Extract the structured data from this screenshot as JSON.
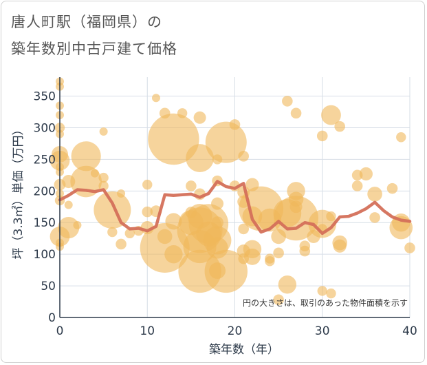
{
  "title": {
    "line1": "唐人町駅（福岡県）の",
    "line2": "築年数別中古戸建て価格"
  },
  "chart_data": {
    "type": "scatter",
    "xlabel": "築年数（年）",
    "ylabel": "坪（3.3㎡）単価（万円）",
    "note": "円の大きさは、取引のあった物件面積を示す",
    "xlim": [
      0,
      40
    ],
    "ylim": [
      0,
      380
    ],
    "xticks": [
      0,
      10,
      20,
      30,
      40
    ],
    "yticks": [
      0,
      50,
      100,
      150,
      200,
      250,
      300,
      350
    ],
    "grid": true,
    "colors": {
      "bubble": "#f0b75a",
      "line": "#d4705a",
      "grid": "#d6dde6",
      "axis": "#2d3a4a"
    },
    "series": [
      {
        "kind": "bubbles",
        "points": [
          {
            "x": 0,
            "y": 373,
            "s": 1
          },
          {
            "x": 0,
            "y": 365,
            "s": 1
          },
          {
            "x": 0,
            "y": 335,
            "s": 1
          },
          {
            "x": 0,
            "y": 320,
            "s": 1
          },
          {
            "x": 0,
            "y": 300,
            "s": 1.2
          },
          {
            "x": 0,
            "y": 290,
            "s": 1
          },
          {
            "x": 0,
            "y": 258,
            "s": 2
          },
          {
            "x": 0,
            "y": 248,
            "s": 2.4
          },
          {
            "x": 0,
            "y": 238,
            "s": 1
          },
          {
            "x": 0,
            "y": 230,
            "s": 1
          },
          {
            "x": 0,
            "y": 210,
            "s": 1.4
          },
          {
            "x": 0,
            "y": 196,
            "s": 1
          },
          {
            "x": 0,
            "y": 185,
            "s": 1.2
          },
          {
            "x": 0,
            "y": 128,
            "s": 2.4
          },
          {
            "x": 0,
            "y": 118,
            "s": 1
          },
          {
            "x": 0,
            "y": 112,
            "s": 1
          },
          {
            "x": 1,
            "y": 215,
            "s": 1.6
          },
          {
            "x": 1,
            "y": 178,
            "s": 1
          },
          {
            "x": 1,
            "y": 142,
            "s": 2.6
          },
          {
            "x": 2,
            "y": 146,
            "s": 1
          },
          {
            "x": 3,
            "y": 255,
            "s": 3.6
          },
          {
            "x": 3,
            "y": 215,
            "s": 3.8
          },
          {
            "x": 4,
            "y": 228,
            "s": 1
          },
          {
            "x": 5,
            "y": 294,
            "s": 1
          },
          {
            "x": 5,
            "y": 221,
            "s": 1.2
          },
          {
            "x": 5,
            "y": 208,
            "s": 1.2
          },
          {
            "x": 6,
            "y": 170,
            "s": 4.5
          },
          {
            "x": 6,
            "y": 135,
            "s": 1.2
          },
          {
            "x": 7,
            "y": 196,
            "s": 1
          },
          {
            "x": 7,
            "y": 116,
            "s": 1.3
          },
          {
            "x": 8,
            "y": 133,
            "s": 1.2
          },
          {
            "x": 9,
            "y": 137,
            "s": 1.2
          },
          {
            "x": 10,
            "y": 210,
            "s": 1.2
          },
          {
            "x": 10,
            "y": 167,
            "s": 1.3
          },
          {
            "x": 10,
            "y": 142,
            "s": 1.6
          },
          {
            "x": 11,
            "y": 347,
            "s": 1
          },
          {
            "x": 11,
            "y": 168,
            "s": 1.4
          },
          {
            "x": 12,
            "y": 323,
            "s": 1.3
          },
          {
            "x": 12,
            "y": 128,
            "s": 1.8
          },
          {
            "x": 12,
            "y": 110,
            "s": 6
          },
          {
            "x": 13,
            "y": 282,
            "s": 6.2
          },
          {
            "x": 13,
            "y": 100,
            "s": 2.2
          },
          {
            "x": 13,
            "y": 152,
            "s": 2
          },
          {
            "x": 14,
            "y": 323,
            "s": 1.2
          },
          {
            "x": 15,
            "y": 208,
            "s": 1.3
          },
          {
            "x": 15,
            "y": 166,
            "s": 1.4
          },
          {
            "x": 15,
            "y": 150,
            "s": 3
          },
          {
            "x": 16,
            "y": 316,
            "s": 1.5
          },
          {
            "x": 16,
            "y": 252,
            "s": 3.4
          },
          {
            "x": 16,
            "y": 195,
            "s": 1.4
          },
          {
            "x": 16,
            "y": 160,
            "s": 3
          },
          {
            "x": 16,
            "y": 138,
            "s": 5.5
          },
          {
            "x": 16,
            "y": 112,
            "s": 4
          },
          {
            "x": 16,
            "y": 73,
            "s": 5.2
          },
          {
            "x": 17,
            "y": 148,
            "s": 4.8
          },
          {
            "x": 17,
            "y": 132,
            "s": 3
          },
          {
            "x": 18,
            "y": 250,
            "s": 1.2
          },
          {
            "x": 18,
            "y": 216,
            "s": 1.3
          },
          {
            "x": 18,
            "y": 180,
            "s": 1.5
          },
          {
            "x": 18,
            "y": 150,
            "s": 1.5
          },
          {
            "x": 18,
            "y": 122,
            "s": 3.4
          },
          {
            "x": 18,
            "y": 110,
            "s": 2.6
          },
          {
            "x": 18,
            "y": 74,
            "s": 2
          },
          {
            "x": 19,
            "y": 277,
            "s": 5
          },
          {
            "x": 19,
            "y": 73,
            "s": 5.2
          },
          {
            "x": 20,
            "y": 305,
            "s": 1.3
          },
          {
            "x": 20,
            "y": 208,
            "s": 1.3
          },
          {
            "x": 21,
            "y": 255,
            "s": 1.3
          },
          {
            "x": 21,
            "y": 198,
            "s": 1.5
          },
          {
            "x": 21,
            "y": 183,
            "s": 1.5
          },
          {
            "x": 21,
            "y": 140,
            "s": 1.3
          },
          {
            "x": 21,
            "y": 105,
            "s": 1.6
          },
          {
            "x": 21,
            "y": 93,
            "s": 1.3
          },
          {
            "x": 22,
            "y": 210,
            "s": 1.6
          },
          {
            "x": 22,
            "y": 160,
            "s": 2.4
          },
          {
            "x": 22,
            "y": 108,
            "s": 2.2
          },
          {
            "x": 22,
            "y": 96,
            "s": 2
          },
          {
            "x": 23,
            "y": 172,
            "s": 5.4
          },
          {
            "x": 24,
            "y": 154,
            "s": 2.8
          },
          {
            "x": 24,
            "y": 93,
            "s": 1.2
          },
          {
            "x": 24,
            "y": 89,
            "s": 1.2
          },
          {
            "x": 25,
            "y": 128,
            "s": 1.8
          },
          {
            "x": 25,
            "y": 102,
            "s": 1.3
          },
          {
            "x": 25,
            "y": 28,
            "s": 1.3
          },
          {
            "x": 26,
            "y": 342,
            "s": 1.3
          },
          {
            "x": 26,
            "y": 165,
            "s": 3.4
          },
          {
            "x": 26,
            "y": 52,
            "s": 2.2
          },
          {
            "x": 27,
            "y": 323,
            "s": 1.3
          },
          {
            "x": 27,
            "y": 200,
            "s": 2.2
          },
          {
            "x": 27,
            "y": 187,
            "s": 1.8
          },
          {
            "x": 27,
            "y": 175,
            "s": 1.5
          },
          {
            "x": 27,
            "y": 157,
            "s": 5.4
          },
          {
            "x": 28,
            "y": 113,
            "s": 1.3
          },
          {
            "x": 28,
            "y": 105,
            "s": 1.3
          },
          {
            "x": 29,
            "y": 128,
            "s": 1.6
          },
          {
            "x": 30,
            "y": 287,
            "s": 1.3
          },
          {
            "x": 30,
            "y": 148,
            "s": 3.4
          },
          {
            "x": 30,
            "y": 42,
            "s": 1.2
          },
          {
            "x": 31,
            "y": 320,
            "s": 2.4
          },
          {
            "x": 31,
            "y": 38,
            "s": 1.2
          },
          {
            "x": 32,
            "y": 302,
            "s": 1.3
          },
          {
            "x": 32,
            "y": 118,
            "s": 1.8
          },
          {
            "x": 32,
            "y": 113,
            "s": 1.6
          },
          {
            "x": 34,
            "y": 225,
            "s": 1.3
          },
          {
            "x": 34,
            "y": 208,
            "s": 1.3
          },
          {
            "x": 35,
            "y": 227,
            "s": 1.6
          },
          {
            "x": 36,
            "y": 195,
            "s": 1.8
          },
          {
            "x": 36,
            "y": 158,
            "s": 1.3
          },
          {
            "x": 38,
            "y": 204,
            "s": 1.3
          },
          {
            "x": 39,
            "y": 285,
            "s": 1.2
          },
          {
            "x": 39,
            "y": 150,
            "s": 2.2
          },
          {
            "x": 39,
            "y": 142,
            "s": 2.8
          },
          {
            "x": 40,
            "y": 110,
            "s": 1.3
          },
          {
            "x": 31,
            "y": 160,
            "s": 1.2
          },
          {
            "x": 30,
            "y": 140,
            "s": 1.2
          }
        ]
      },
      {
        "kind": "line",
        "points": [
          {
            "x": 0,
            "y": 186
          },
          {
            "x": 1,
            "y": 193
          },
          {
            "x": 2,
            "y": 202
          },
          {
            "x": 3,
            "y": 201
          },
          {
            "x": 4,
            "y": 199
          },
          {
            "x": 5,
            "y": 202
          },
          {
            "x": 6,
            "y": 181
          },
          {
            "x": 7,
            "y": 150
          },
          {
            "x": 8,
            "y": 140
          },
          {
            "x": 9,
            "y": 141
          },
          {
            "x": 10,
            "y": 137
          },
          {
            "x": 11,
            "y": 144
          },
          {
            "x": 12,
            "y": 194
          },
          {
            "x": 13,
            "y": 193
          },
          {
            "x": 14,
            "y": 194
          },
          {
            "x": 15,
            "y": 195
          },
          {
            "x": 16,
            "y": 190
          },
          {
            "x": 17,
            "y": 196
          },
          {
            "x": 18,
            "y": 215
          },
          {
            "x": 19,
            "y": 207
          },
          {
            "x": 20,
            "y": 204
          },
          {
            "x": 21,
            "y": 212
          },
          {
            "x": 22,
            "y": 155
          },
          {
            "x": 23,
            "y": 135
          },
          {
            "x": 24,
            "y": 140
          },
          {
            "x": 25,
            "y": 152
          },
          {
            "x": 26,
            "y": 140
          },
          {
            "x": 27,
            "y": 141
          },
          {
            "x": 28,
            "y": 150
          },
          {
            "x": 29,
            "y": 147
          },
          {
            "x": 30,
            "y": 133
          },
          {
            "x": 31,
            "y": 142
          },
          {
            "x": 32,
            "y": 159
          },
          {
            "x": 33,
            "y": 160
          },
          {
            "x": 34,
            "y": 165
          },
          {
            "x": 35,
            "y": 172
          },
          {
            "x": 36,
            "y": 182
          },
          {
            "x": 37,
            "y": 169
          },
          {
            "x": 38,
            "y": 159
          },
          {
            "x": 39,
            "y": 154
          },
          {
            "x": 40,
            "y": 152
          }
        ]
      }
    ]
  }
}
